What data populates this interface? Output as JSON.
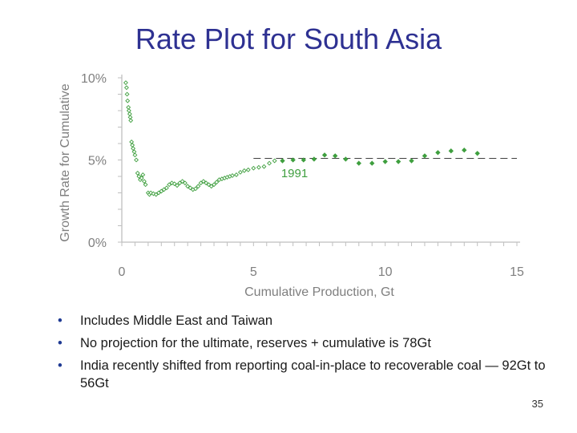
{
  "slide": {
    "title": "Rate Plot for South Asia",
    "bullets": [
      "Includes Middle East and Taiwan",
      "No projection for the ultimate, reserves + cumulative is 78Gt",
      "India recently shifted from reporting coal-in-place to recoverable coal — 92Gt to 56Gt"
    ],
    "page_number": "35"
  },
  "chart_data": {
    "type": "scatter",
    "title": "",
    "xlabel": "Cumulative Production, Gt",
    "ylabel": "Growth Rate for Cumulative",
    "xlim": [
      0,
      15
    ],
    "ylim": [
      0,
      10
    ],
    "xticks": [
      {
        "value": 0,
        "label": "0"
      },
      {
        "value": 5,
        "label": "5"
      },
      {
        "value": 10,
        "label": "10"
      },
      {
        "value": 15,
        "label": "15"
      }
    ],
    "yticks": [
      {
        "value": 0,
        "label": "0%"
      },
      {
        "value": 5,
        "label": "5%"
      },
      {
        "value": 10,
        "label": "10%"
      }
    ],
    "grid": false,
    "colors": {
      "points": "#3f9f3f",
      "axis": "#bfbfbf",
      "reference_line": "#404040",
      "text": "#7f7f7f"
    },
    "reference_line": {
      "y": 5.1,
      "x_start": 5.0,
      "x_end": 15.0,
      "style": "dashed"
    },
    "annotations": [
      {
        "text": "1991",
        "x": 6.05,
        "y": 3.95
      }
    ],
    "series": [
      {
        "marker": "hollow-diamond",
        "points": [
          [
            0.15,
            9.7
          ],
          [
            0.18,
            9.4
          ],
          [
            0.2,
            9.0
          ],
          [
            0.22,
            8.6
          ],
          [
            0.25,
            8.2
          ],
          [
            0.27,
            8.0
          ],
          [
            0.3,
            7.8
          ],
          [
            0.32,
            7.6
          ],
          [
            0.34,
            7.4
          ],
          [
            0.37,
            6.1
          ],
          [
            0.4,
            5.9
          ],
          [
            0.43,
            5.7
          ],
          [
            0.47,
            5.5
          ],
          [
            0.5,
            5.3
          ],
          [
            0.55,
            5.0
          ],
          [
            0.6,
            4.2
          ],
          [
            0.65,
            4.0
          ],
          [
            0.7,
            3.8
          ],
          [
            0.75,
            3.9
          ],
          [
            0.8,
            4.1
          ],
          [
            0.85,
            3.7
          ],
          [
            0.9,
            3.5
          ],
          [
            1.0,
            3.0
          ],
          [
            1.05,
            2.9
          ],
          [
            1.1,
            3.0
          ],
          [
            1.2,
            2.95
          ],
          [
            1.3,
            2.9
          ],
          [
            1.4,
            3.0
          ],
          [
            1.5,
            3.1
          ],
          [
            1.6,
            3.2
          ],
          [
            1.7,
            3.3
          ],
          [
            1.8,
            3.5
          ],
          [
            1.9,
            3.6
          ],
          [
            2.0,
            3.55
          ],
          [
            2.1,
            3.45
          ],
          [
            2.2,
            3.6
          ],
          [
            2.3,
            3.7
          ],
          [
            2.4,
            3.6
          ],
          [
            2.5,
            3.4
          ],
          [
            2.6,
            3.3
          ],
          [
            2.7,
            3.2
          ],
          [
            2.8,
            3.25
          ],
          [
            2.9,
            3.4
          ],
          [
            3.0,
            3.6
          ],
          [
            3.1,
            3.7
          ],
          [
            3.2,
            3.6
          ],
          [
            3.3,
            3.5
          ],
          [
            3.4,
            3.4
          ],
          [
            3.5,
            3.5
          ],
          [
            3.6,
            3.65
          ],
          [
            3.7,
            3.8
          ],
          [
            3.8,
            3.85
          ],
          [
            3.9,
            3.9
          ],
          [
            4.0,
            3.95
          ],
          [
            4.1,
            4.0
          ],
          [
            4.2,
            4.05
          ],
          [
            4.35,
            4.1
          ],
          [
            4.5,
            4.25
          ],
          [
            4.65,
            4.35
          ],
          [
            4.8,
            4.4
          ],
          [
            5.0,
            4.5
          ],
          [
            5.2,
            4.55
          ],
          [
            5.4,
            4.6
          ],
          [
            5.6,
            4.8
          ],
          [
            5.8,
            4.95
          ]
        ]
      },
      {
        "marker": "filled-diamond",
        "points": [
          [
            6.1,
            4.95
          ],
          [
            6.5,
            5.0
          ],
          [
            6.9,
            5.0
          ],
          [
            7.3,
            5.05
          ],
          [
            7.7,
            5.3
          ],
          [
            8.1,
            5.25
          ],
          [
            8.5,
            5.05
          ],
          [
            9.0,
            4.8
          ],
          [
            9.5,
            4.8
          ],
          [
            10.0,
            4.9
          ],
          [
            10.5,
            4.9
          ],
          [
            11.0,
            4.95
          ],
          [
            11.5,
            5.25
          ],
          [
            12.0,
            5.45
          ],
          [
            12.5,
            5.55
          ],
          [
            13.0,
            5.6
          ],
          [
            13.5,
            5.4
          ]
        ]
      }
    ]
  }
}
